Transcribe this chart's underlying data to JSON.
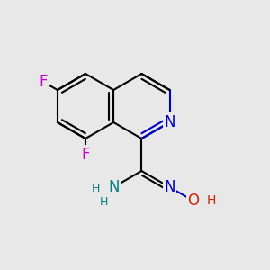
{
  "bg_color": "#e8e8e8",
  "bond_color": "#000000",
  "N_color": "#0000cc",
  "O_color": "#cc2200",
  "F_color": "#cc00cc",
  "NH2_color": "#008080",
  "lw": 1.5,
  "dbo": 0.055,
  "font_size": 12,
  "font_size_small": 10
}
